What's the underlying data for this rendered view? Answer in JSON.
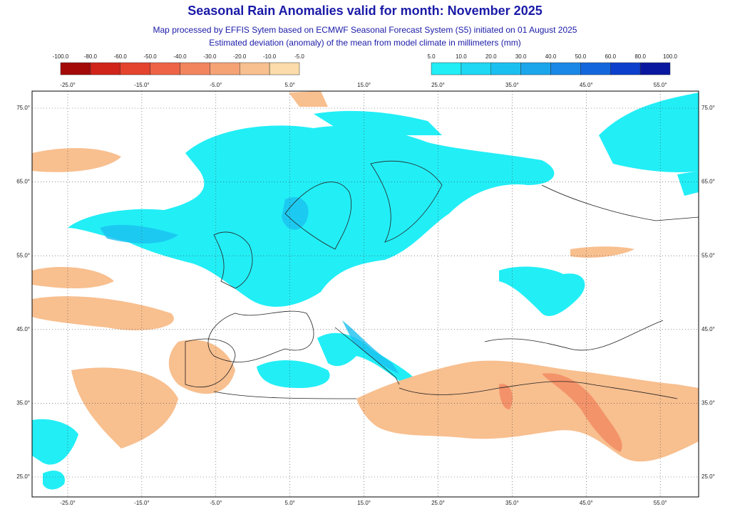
{
  "header": {
    "title": "Seasonal Rain Anomalies valid for month: November 2025",
    "subtitle": [
      "Map processed by EFFIS Sytem based on ECMWF Seasonal Forecast System (S5) initiated on 01 August 2025",
      "Estimated deviation (anomaly) of the mean from model climate in millimeters (mm)"
    ]
  },
  "legend": {
    "negative": {
      "labels": [
        "-100.0",
        "-80.0",
        "-60.0",
        "-50.0",
        "-40.0",
        "-30.0",
        "-20.0",
        "-10.0",
        "-5.0"
      ],
      "colors": [
        "#a30a08",
        "#d0231a",
        "#e4432d",
        "#ee6346",
        "#f2845e",
        "#f5a275",
        "#f8bf8f",
        "#fbdcaa"
      ]
    },
    "positive": {
      "labels": [
        "5.0",
        "10.0",
        "20.0",
        "30.0",
        "40.0",
        "50.0",
        "60.0",
        "80.0",
        "100.0"
      ],
      "colors": [
        "#22eef6",
        "#1ed8f4",
        "#1cc0f0",
        "#1ba6ec",
        "#1988e6",
        "#1466dc",
        "#0c3fcc",
        "#0a18a0"
      ]
    }
  },
  "map": {
    "lon_labels": [
      "-25.0°",
      "-15.0°",
      "-5.0°",
      "5.0°",
      "15.0°",
      "25.0°",
      "35.0°",
      "45.0°",
      "55.0°"
    ],
    "lat_labels": [
      "75.0°",
      "65.0°",
      "55.0°",
      "45.0°",
      "35.0°",
      "25.0°"
    ]
  }
}
